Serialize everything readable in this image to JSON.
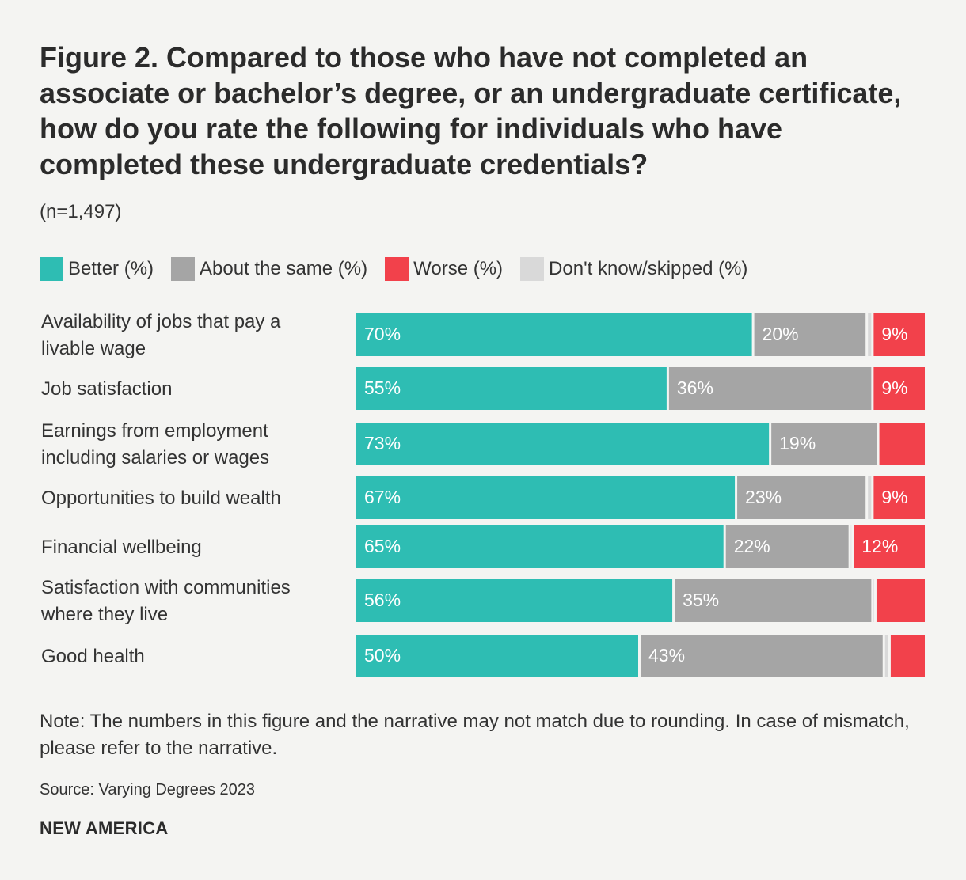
{
  "title": "Figure 2. Compared to those who have not completed an associate or bachelor’s degree, or an undergraduate certificate, how do you rate the following for individuals who have completed these undergraduate credentials?",
  "subtitle": "(n=1,497)",
  "note": "Note: The numbers in this figure and the narrative may not match due to rounding. In case of mismatch, please refer to the narrative.",
  "source": "Source: Varying Degrees 2023",
  "brand": "NEW AMERICA",
  "colors": {
    "better": "#2ebdb3",
    "same": "#a5a5a5",
    "worse": "#f2414b",
    "dk": "#d9d9d9"
  },
  "chart_data": {
    "type": "bar",
    "orientation": "horizontal",
    "stacked": true,
    "legend_position": "top",
    "categories": [
      [
        "Availability of jobs that pay a",
        "livable wage"
      ],
      [
        "Job satisfaction"
      ],
      [
        "Earnings from employment",
        "including salaries or wages"
      ],
      [
        "Opportunities to build wealth"
      ],
      [
        "Financial wellbeing"
      ],
      [
        "Satisfaction with communities",
        "where they live"
      ],
      [
        "Good health"
      ]
    ],
    "series": [
      {
        "name": "Better (%)",
        "color": "#2ebdb3",
        "values": [
          70,
          55,
          73,
          67,
          65,
          56,
          50
        ],
        "labels": [
          "70%",
          "55%",
          "73%",
          "67%",
          "65%",
          "56%",
          "50%"
        ]
      },
      {
        "name": "About the same (%)",
        "color": "#a5a5a5",
        "values": [
          20,
          36,
          19,
          23,
          22,
          35,
          43
        ],
        "labels": [
          "20%",
          "36%",
          "19%",
          "23%",
          "22%",
          "35%",
          "43%"
        ]
      },
      {
        "name": "Don't know/skipped (%)",
        "color": "#d9d9d9",
        "values": [
          1,
          0,
          0,
          1,
          0.5,
          0.5,
          1
        ],
        "labels": [
          "",
          "",
          "",
          "",
          "",
          "",
          ""
        ]
      },
      {
        "name": "Worse (%)",
        "color": "#f2414b",
        "values": [
          9,
          9,
          8,
          9,
          12,
          8,
          6
        ],
        "labels": [
          "9%",
          "9%",
          "",
          "9%",
          "12%",
          "",
          ""
        ]
      }
    ],
    "legend": [
      "Better (%)",
      "About the same (%)",
      "Worse (%)",
      "Don't know/skipped (%)"
    ],
    "xlim": [
      0,
      100
    ],
    "grid": false
  }
}
